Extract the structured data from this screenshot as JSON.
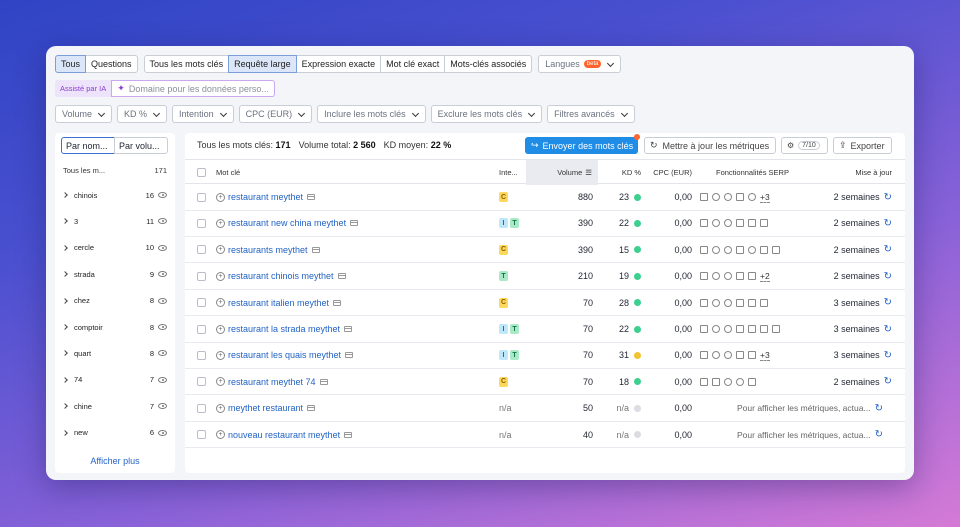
{
  "filters_row1": {
    "group1": [
      "Tous",
      "Questions"
    ],
    "group1_active": 0,
    "group2": [
      "Tous les mots clés",
      "Requête large",
      "Expression exacte",
      "Mot clé exact",
      "Mots-clés associés"
    ],
    "group2_active": 1,
    "languages_label": "Langues",
    "beta_badge": "beta"
  },
  "ai": {
    "label": "Assisté par IA",
    "placeholder": "Domaine pour les données perso..."
  },
  "filters_row3": [
    "Volume",
    "KD %",
    "Intention",
    "CPC (EUR)",
    "Inclure les mots clés",
    "Exclure les mots clés",
    "Filtres avancés"
  ],
  "sidebar": {
    "toggle": [
      "Par nom...",
      "Par volu..."
    ],
    "header_label": "Tous les m...",
    "header_count": "171",
    "groups": [
      {
        "name": "chinois",
        "count": "16"
      },
      {
        "name": "3",
        "count": "11"
      },
      {
        "name": "cercle",
        "count": "10"
      },
      {
        "name": "strada",
        "count": "9"
      },
      {
        "name": "chez",
        "count": "8"
      },
      {
        "name": "comptoir",
        "count": "8"
      },
      {
        "name": "quart",
        "count": "8"
      },
      {
        "name": "74",
        "count": "7"
      },
      {
        "name": "chine",
        "count": "7"
      },
      {
        "name": "new",
        "count": "6"
      }
    ],
    "show_more": "Afficher plus"
  },
  "summary": {
    "all_label": "Tous les mots clés:",
    "all_value": "171",
    "volume_label": "Volume total:",
    "volume_value": "2 560",
    "kd_label": "KD moyen:",
    "kd_value": "22 %"
  },
  "toolbar": {
    "send": "Envoyer des mots clés",
    "update": "Mettre à jour les métriques",
    "settings_count": "7/10",
    "export": "Exporter"
  },
  "columns": {
    "keyword": "Mot clé",
    "intent": "Inte...",
    "volume": "Volume",
    "kd": "KD %",
    "cpc": "CPC (EUR)",
    "serp": "Fonctionnalités SERP",
    "updated": "Mise à jour"
  },
  "rows": [
    {
      "keyword": "restaurant meythet",
      "intents": [
        "C"
      ],
      "volume": "880",
      "kd": "23",
      "kd_color": "#3ccf8e",
      "cpc": "0,00",
      "features": [
        "doc",
        "link",
        "star",
        "img",
        "round"
      ],
      "more": "+3",
      "updated": "2 semaines"
    },
    {
      "keyword": "restaurant new china meythet",
      "intents": [
        "I",
        "T"
      ],
      "volume": "390",
      "kd": "22",
      "kd_color": "#3ccf8e",
      "cpc": "0,00",
      "features": [
        "doc",
        "link",
        "star",
        "img",
        "cap",
        "list"
      ],
      "more": "",
      "updated": "2 semaines"
    },
    {
      "keyword": "restaurants meythet",
      "intents": [
        "C"
      ],
      "volume": "390",
      "kd": "15",
      "kd_color": "#3ccf8e",
      "cpc": "0,00",
      "features": [
        "doc",
        "link",
        "star",
        "img",
        "round",
        "list",
        "book"
      ],
      "more": "",
      "updated": "2 semaines"
    },
    {
      "keyword": "restaurant chinois meythet",
      "intents": [
        "T"
      ],
      "volume": "210",
      "kd": "19",
      "kd_color": "#3ccf8e",
      "cpc": "0,00",
      "features": [
        "doc",
        "link",
        "star",
        "img",
        "img2"
      ],
      "more": "+2",
      "updated": "2 semaines"
    },
    {
      "keyword": "restaurant italien meythet",
      "intents": [
        "C"
      ],
      "volume": "70",
      "kd": "28",
      "kd_color": "#3ccf8e",
      "cpc": "0,00",
      "features": [
        "doc",
        "link",
        "star",
        "img",
        "img2",
        "list"
      ],
      "more": "",
      "updated": "3 semaines"
    },
    {
      "keyword": "restaurant la strada meythet",
      "intents": [
        "I",
        "T"
      ],
      "volume": "70",
      "kd": "22",
      "kd_color": "#3ccf8e",
      "cpc": "0,00",
      "features": [
        "doc",
        "link",
        "star",
        "img",
        "img2",
        "cap",
        "list"
      ],
      "more": "",
      "updated": "3 semaines"
    },
    {
      "keyword": "restaurant les quais meythet",
      "intents": [
        "I",
        "T"
      ],
      "volume": "70",
      "kd": "31",
      "kd_color": "#f2c230",
      "cpc": "0,00",
      "features": [
        "doc",
        "link",
        "star",
        "img",
        "img2"
      ],
      "more": "+3",
      "updated": "3 semaines"
    },
    {
      "keyword": "restaurant meythet 74",
      "intents": [
        "C"
      ],
      "volume": "70",
      "kd": "18",
      "kd_color": "#3ccf8e",
      "cpc": "0,00",
      "features": [
        "doc",
        "img",
        "star",
        "round",
        "list"
      ],
      "more": "",
      "updated": "2 semaines"
    },
    {
      "keyword": "meythet restaurant",
      "intents": [],
      "intent_text": "n/a",
      "volume": "50",
      "kd": "n/a",
      "kd_color": "#dcdde2",
      "cpc": "0,00",
      "features": [],
      "more": "",
      "updated": "",
      "pending": "Pour afficher les métriques, actua..."
    },
    {
      "keyword": "nouveau restaurant meythet",
      "intents": [],
      "intent_text": "n/a",
      "volume": "40",
      "kd": "n/a",
      "kd_color": "#dcdde2",
      "cpc": "0,00",
      "features": [],
      "more": "",
      "updated": "",
      "pending": "Pour afficher les métriques, actua..."
    }
  ]
}
